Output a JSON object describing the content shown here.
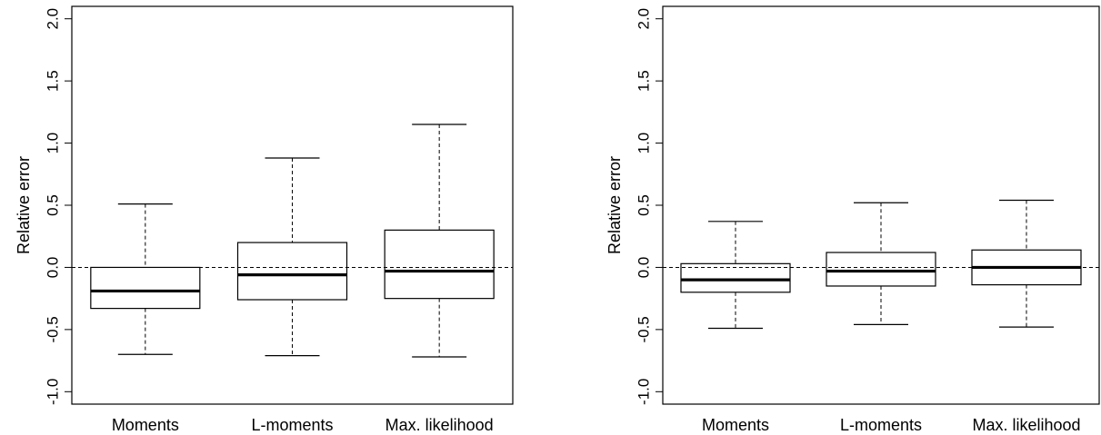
{
  "chart_data": [
    {
      "type": "boxplot",
      "title": "",
      "xlabel": "",
      "ylabel": "Relative error",
      "ylim": [
        -1.1,
        2.1
      ],
      "yticks": [
        -1.0,
        -0.5,
        0.0,
        0.5,
        1.0,
        1.5,
        2.0
      ],
      "ytick_labels": [
        "-1.0",
        "-0.5",
        "0.0",
        "0.5",
        "1.0",
        "1.5",
        "2.0"
      ],
      "categories": [
        "Moments",
        "L-moments",
        "Max. likelihood"
      ],
      "reference_line": 0.0,
      "grid": false,
      "boxes": [
        {
          "whisker_low": -0.7,
          "q1": -0.33,
          "median": -0.19,
          "q3": 0.0,
          "whisker_high": 0.51
        },
        {
          "whisker_low": -0.71,
          "q1": -0.26,
          "median": -0.06,
          "q3": 0.2,
          "whisker_high": 0.88
        },
        {
          "whisker_low": -0.72,
          "q1": -0.25,
          "median": -0.03,
          "q3": 0.3,
          "whisker_high": 1.15
        }
      ]
    },
    {
      "type": "boxplot",
      "title": "",
      "xlabel": "",
      "ylabel": "Relative error",
      "ylim": [
        -1.1,
        2.1
      ],
      "yticks": [
        -1.0,
        -0.5,
        0.0,
        0.5,
        1.0,
        1.5,
        2.0
      ],
      "ytick_labels": [
        "-1.0",
        "-0.5",
        "0.0",
        "0.5",
        "1.0",
        "1.5",
        "2.0"
      ],
      "categories": [
        "Moments",
        "L-moments",
        "Max. likelihood"
      ],
      "reference_line": 0.0,
      "grid": false,
      "boxes": [
        {
          "whisker_low": -0.49,
          "q1": -0.2,
          "median": -0.1,
          "q3": 0.03,
          "whisker_high": 0.37
        },
        {
          "whisker_low": -0.46,
          "q1": -0.15,
          "median": -0.03,
          "q3": 0.12,
          "whisker_high": 0.52
        },
        {
          "whisker_low": -0.48,
          "q1": -0.14,
          "median": 0.0,
          "q3": 0.14,
          "whisker_high": 0.54
        }
      ]
    }
  ],
  "style": {
    "box_stroke": "#000000",
    "box_fill": "#ffffff",
    "median_stroke": "#000000",
    "reference_line_color": "#000000",
    "background": "#ffffff"
  }
}
